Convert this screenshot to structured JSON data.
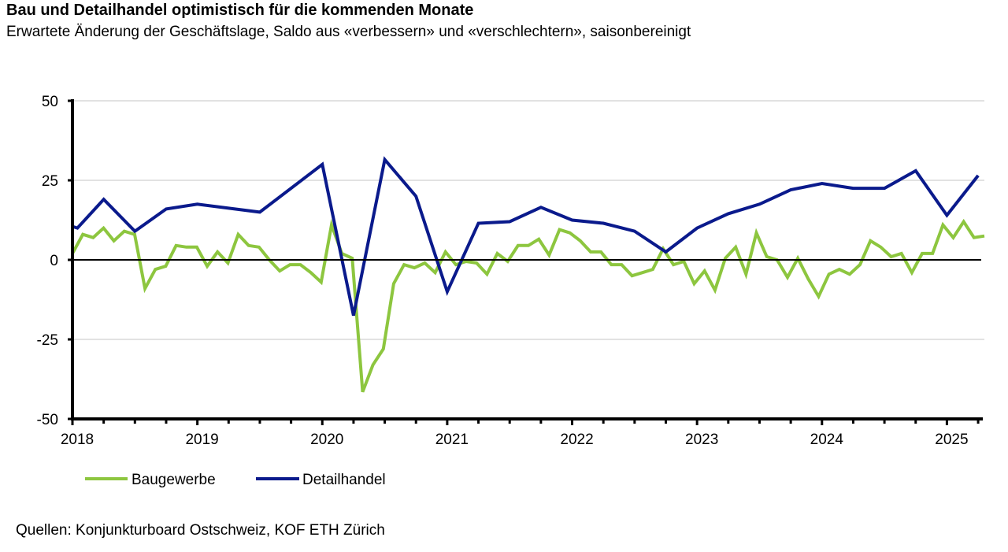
{
  "header": {
    "title": "Bau und Detailhandel optimistisch für die kommenden Monate",
    "subtitle": "Erwartete Änderung der Geschäftslage, Saldo aus «verbessern» und «verschlechtern», saisonbereinigt"
  },
  "footer": {
    "source": "Quellen: Konjunkturboard Ostschweiz, KOF ETH Zürich"
  },
  "chart_data": {
    "type": "line",
    "title": "Bau und Detailhandel optimistisch für die kommenden Monate",
    "subtitle": "Erwartete Änderung der Geschäftslage, Saldo aus «verbessern» und «verschlechtern», saisonbereinigt",
    "xlabel": "",
    "ylabel": "",
    "xlim": [
      2018.0,
      2025.3
    ],
    "ylim": [
      -50,
      50
    ],
    "yticks": [
      "50",
      "25",
      "0",
      "-25",
      "-50"
    ],
    "ytick_values": [
      50,
      25,
      0,
      -25,
      -50
    ],
    "xticks": [
      "2018",
      "2019",
      "2020",
      "2021",
      "2022",
      "2023",
      "2024",
      "2025"
    ],
    "xtick_values": [
      2018,
      2019,
      2020,
      2021,
      2022,
      2023,
      2024,
      2025
    ],
    "grid": "horizontal",
    "legend": "bottom-left",
    "series": [
      {
        "name": "Baugewerbe",
        "color": "#8dc63f",
        "frequency": "monthly",
        "start": 2018.0,
        "step": 0.0833,
        "values": [
          2,
          8,
          7,
          10,
          6,
          9,
          8,
          -9,
          -3,
          -2,
          4.5,
          4,
          4,
          -2,
          2.5,
          -1,
          8,
          4.5,
          4,
          0,
          -3.5,
          -1.5,
          -1.5,
          -4,
          -7,
          11,
          2,
          0.5,
          -41.5,
          -33,
          -28,
          -7.5,
          -1.5,
          -2.5,
          -1,
          -4,
          2.5,
          -1.5,
          -0.5,
          -1,
          -4.5,
          2,
          -0.5,
          4.5,
          4.5,
          6.5,
          1.5,
          9.5,
          8.5,
          6,
          2.5,
          2.5,
          -1.5,
          -1.5,
          -5,
          -4,
          -3,
          3.5,
          -1.5,
          -0.5,
          -7.5,
          -3.5,
          -9.5,
          0.5,
          4,
          -4.5,
          8.5,
          1,
          0,
          -5.5,
          0.5,
          -6,
          -11.5,
          -4.5,
          -3,
          -4.5,
          -1.5,
          6,
          4,
          1,
          2,
          -4,
          2,
          2,
          11,
          7,
          12,
          7,
          7.5
        ]
      },
      {
        "name": "Detailhandel",
        "color": "#0a1a8c",
        "frequency": "quarterly",
        "x": [
          2018.0,
          2018.04,
          2018.25,
          2018.5,
          2018.75,
          2019.0,
          2019.5,
          2020.0,
          2020.25,
          2020.5,
          2020.75,
          2021.0,
          2021.25,
          2021.5,
          2021.75,
          2022.0,
          2022.25,
          2022.5,
          2022.75,
          2023.0,
          2023.25,
          2023.5,
          2023.75,
          2024.0,
          2024.25,
          2024.5,
          2024.75,
          2025.0,
          2025.25
        ],
        "values": [
          10.5,
          10,
          19,
          9,
          16,
          17.5,
          15,
          30,
          -17.5,
          31.5,
          20,
          -10,
          11.5,
          12,
          16.5,
          12.5,
          11.5,
          9,
          2.5,
          10,
          14.5,
          17.5,
          22,
          24,
          22.5,
          22.5,
          28,
          14,
          26.5
        ]
      }
    ]
  }
}
